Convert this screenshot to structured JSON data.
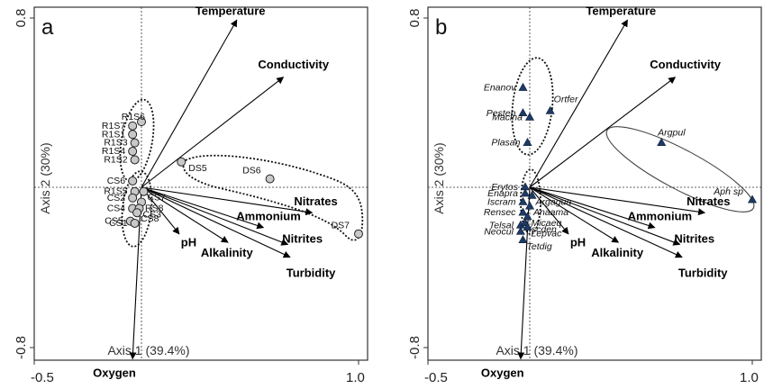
{
  "figure": {
    "chart_data": [
      {
        "type": "scatter",
        "panel_label": "a",
        "xlabel": "Axis 1 (39.4%)",
        "ylabel": "Axis 2 (30%)",
        "xlim": [
          -0.5,
          1.0
        ],
        "ylim": [
          -0.8,
          0.8
        ],
        "x_tick_labels": [
          "-0.5",
          "1.0"
        ],
        "y_tick_labels": [
          "0.8",
          "-0.8"
        ],
        "environmental_vectors": [
          {
            "name": "Temperature",
            "x": 0.43,
            "y": 0.79
          },
          {
            "name": "Conductivity",
            "x": 0.64,
            "y": 0.52
          },
          {
            "name": "Nitrates",
            "x": 0.77,
            "y": -0.12
          },
          {
            "name": "Ammonium",
            "x": 0.55,
            "y": -0.19
          },
          {
            "name": "pH",
            "x": 0.17,
            "y": -0.22
          },
          {
            "name": "Alkalinity",
            "x": 0.39,
            "y": -0.26
          },
          {
            "name": "Nitrites",
            "x": 0.66,
            "y": -0.27
          },
          {
            "name": "Turbidity",
            "x": 0.67,
            "y": -0.33
          },
          {
            "name": "Oxygen",
            "x": -0.04,
            "y": -0.81
          }
        ],
        "points": [
          {
            "label": "R1S6",
            "x": 0.0,
            "y": 0.31
          },
          {
            "label": "R1S7",
            "x": -0.04,
            "y": 0.29
          },
          {
            "label": "R1S1",
            "x": -0.04,
            "y": 0.25
          },
          {
            "label": "R1S3",
            "x": -0.03,
            "y": 0.21
          },
          {
            "label": "R1S4",
            "x": -0.04,
            "y": 0.17
          },
          {
            "label": "R1S2",
            "x": -0.03,
            "y": 0.13
          },
          {
            "label": "DS5",
            "x": 0.18,
            "y": 0.12
          },
          {
            "label": "DS6",
            "x": 0.58,
            "y": 0.04
          },
          {
            "label": "DS7",
            "x": 0.98,
            "y": -0.22
          },
          {
            "label": "CS6",
            "x": -0.04,
            "y": 0.03
          },
          {
            "label": "R1S5",
            "x": -0.03,
            "y": -0.02
          },
          {
            "label": "CS7",
            "x": 0.01,
            "y": -0.02
          },
          {
            "label": "CS2",
            "x": -0.04,
            "y": -0.05
          },
          {
            "label": "RS8",
            "x": 0.0,
            "y": -0.07
          },
          {
            "label": "CS4",
            "x": -0.04,
            "y": -0.1
          },
          {
            "label": "CS3",
            "x": -0.01,
            "y": -0.1
          },
          {
            "label": "CS8",
            "x": -0.02,
            "y": -0.12
          },
          {
            "label": "CS5",
            "x": -0.05,
            "y": -0.16
          },
          {
            "label": "CS1",
            "x": -0.03,
            "y": -0.17
          }
        ],
        "groups": [
          {
            "name": "R1 sites"
          },
          {
            "name": "DS sites"
          },
          {
            "name": "CS sites"
          }
        ]
      },
      {
        "type": "scatter",
        "panel_label": "b",
        "xlabel": "Axis 1 (39.4%)",
        "ylabel": "Axis 2 (30%)",
        "xlim": [
          -0.5,
          1.0
        ],
        "ylim": [
          -0.8,
          0.8
        ],
        "x_tick_labels": [
          "-0.5",
          "1.0"
        ],
        "y_tick_labels": [
          "0.8",
          "-0.8"
        ],
        "environmental_vectors": [
          {
            "name": "Temperature",
            "x": 0.43,
            "y": 0.79
          },
          {
            "name": "Conductivity",
            "x": 0.64,
            "y": 0.52
          },
          {
            "name": "Nitrates",
            "x": 0.77,
            "y": -0.12
          },
          {
            "name": "Ammonium",
            "x": 0.55,
            "y": -0.19
          },
          {
            "name": "pH",
            "x": 0.17,
            "y": -0.22
          },
          {
            "name": "Alkalinity",
            "x": 0.39,
            "y": -0.26
          },
          {
            "name": "Nitrites",
            "x": 0.66,
            "y": -0.27
          },
          {
            "name": "Turbidity",
            "x": 0.67,
            "y": -0.33
          },
          {
            "name": "Oxygen",
            "x": -0.04,
            "y": -0.81
          }
        ],
        "points": [
          {
            "label": "Enanov",
            "x": -0.03,
            "y": 0.47
          },
          {
            "label": "Ortfer",
            "x": 0.09,
            "y": 0.36
          },
          {
            "label": "Pesten",
            "x": -0.03,
            "y": 0.35
          },
          {
            "label": "Macina",
            "x": 0.0,
            "y": 0.33
          },
          {
            "label": "Plasan",
            "x": -0.01,
            "y": 0.21
          },
          {
            "label": "Argpul",
            "x": 0.58,
            "y": 0.21
          },
          {
            "label": "Aph sp",
            "x": 0.98,
            "y": -0.06
          },
          {
            "label": "Erytos",
            "x": -0.02,
            "y": 0.0
          },
          {
            "label": "Enapra",
            "x": -0.02,
            "y": -0.03
          },
          {
            "label": "Argagua",
            "x": 0.01,
            "y": -0.04
          },
          {
            "label": "Iscram",
            "x": -0.03,
            "y": -0.07
          },
          {
            "label": "Anaama",
            "x": 0.0,
            "y": -0.09
          },
          {
            "label": "Rensec",
            "x": -0.03,
            "y": -0.12
          },
          {
            "label": "Micaeq",
            "x": -0.01,
            "y": -0.14
          },
          {
            "label": "Telsal",
            "x": -0.04,
            "y": -0.18
          },
          {
            "label": "Iscden",
            "x": -0.02,
            "y": -0.17
          },
          {
            "label": "Neocul",
            "x": -0.04,
            "y": -0.21
          },
          {
            "label": "Lepvac",
            "x": -0.01,
            "y": -0.19
          },
          {
            "label": "Tetdig",
            "x": -0.03,
            "y": -0.25
          }
        ],
        "groups": [
          {
            "name": "upper cluster"
          },
          {
            "name": "center cluster"
          },
          {
            "name": "right cluster"
          }
        ]
      }
    ]
  }
}
